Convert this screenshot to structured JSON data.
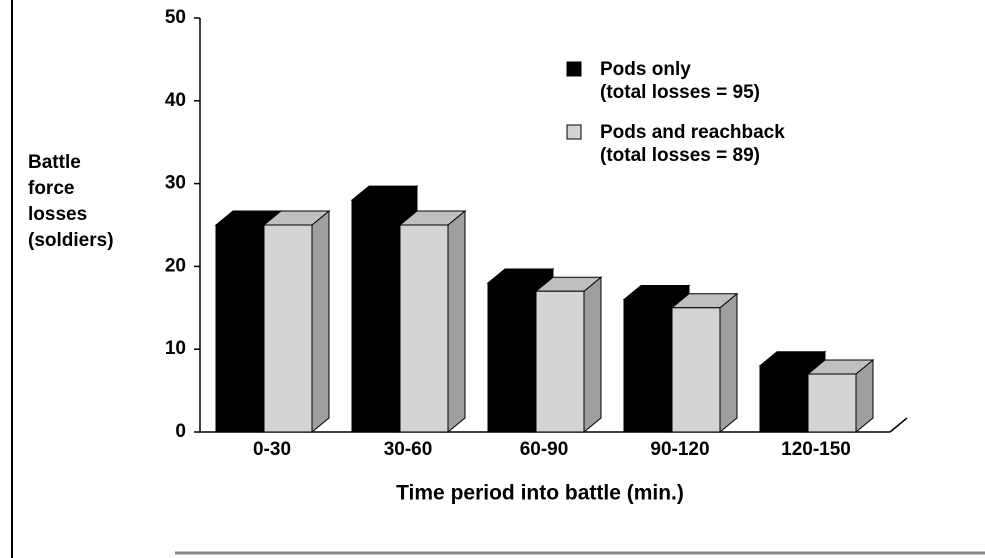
{
  "chart_data": {
    "type": "bar3d",
    "x_label": "Time period into battle (min.)",
    "y_label": [
      "Battle",
      "force",
      "losses",
      "(soldiers)"
    ],
    "categories": [
      "0-30",
      "30-60",
      "60-90",
      "90-120",
      "120-150"
    ],
    "series": [
      {
        "name": "Pods only",
        "legend_detail": "(total losses = 95)",
        "color": "#000000",
        "values": [
          25,
          28,
          18,
          16,
          8
        ]
      },
      {
        "name": "Pods and reachback",
        "legend_detail": "(total losses = 89)",
        "color": "#d4d4d4",
        "values": [
          25,
          25,
          17,
          15,
          7
        ]
      }
    ],
    "ylim": [
      0,
      50
    ],
    "yticks": [
      0,
      10,
      20,
      30,
      40,
      50
    ]
  }
}
